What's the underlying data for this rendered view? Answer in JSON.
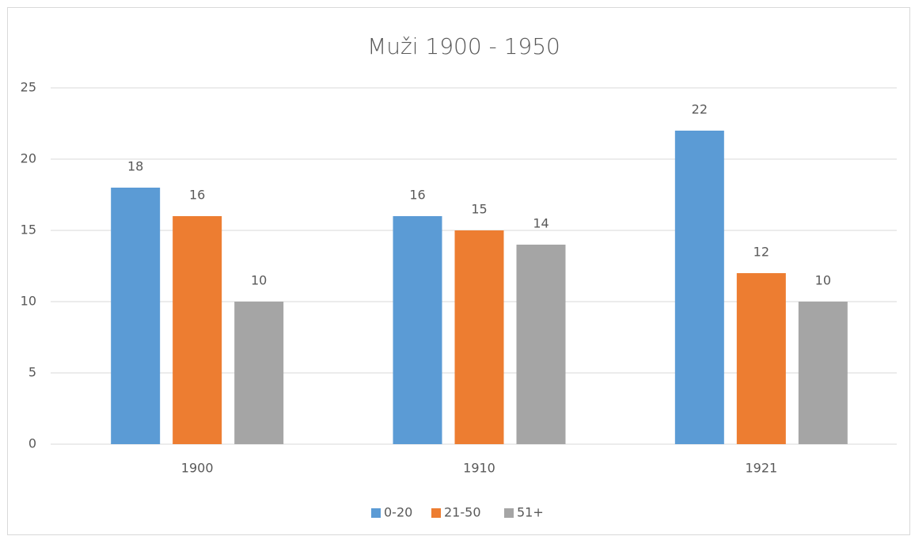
{
  "chart_data": {
    "type": "bar",
    "title": "Muži 1900 - 1950",
    "categories": [
      "1900",
      "1910",
      "1921"
    ],
    "series": [
      {
        "name": "0-20",
        "color": "#5b9bd5",
        "values": [
          18,
          16,
          22
        ]
      },
      {
        "name": "21-50",
        "color": "#ed7d31",
        "values": [
          16,
          15,
          12
        ]
      },
      {
        "name": "51+",
        "color": "#a5a5a5",
        "values": [
          10,
          14,
          10
        ]
      }
    ],
    "ylim": [
      0,
      25
    ],
    "yticks": [
      0,
      5,
      10,
      15,
      20,
      25
    ],
    "grid": true,
    "legend": "bottom"
  }
}
